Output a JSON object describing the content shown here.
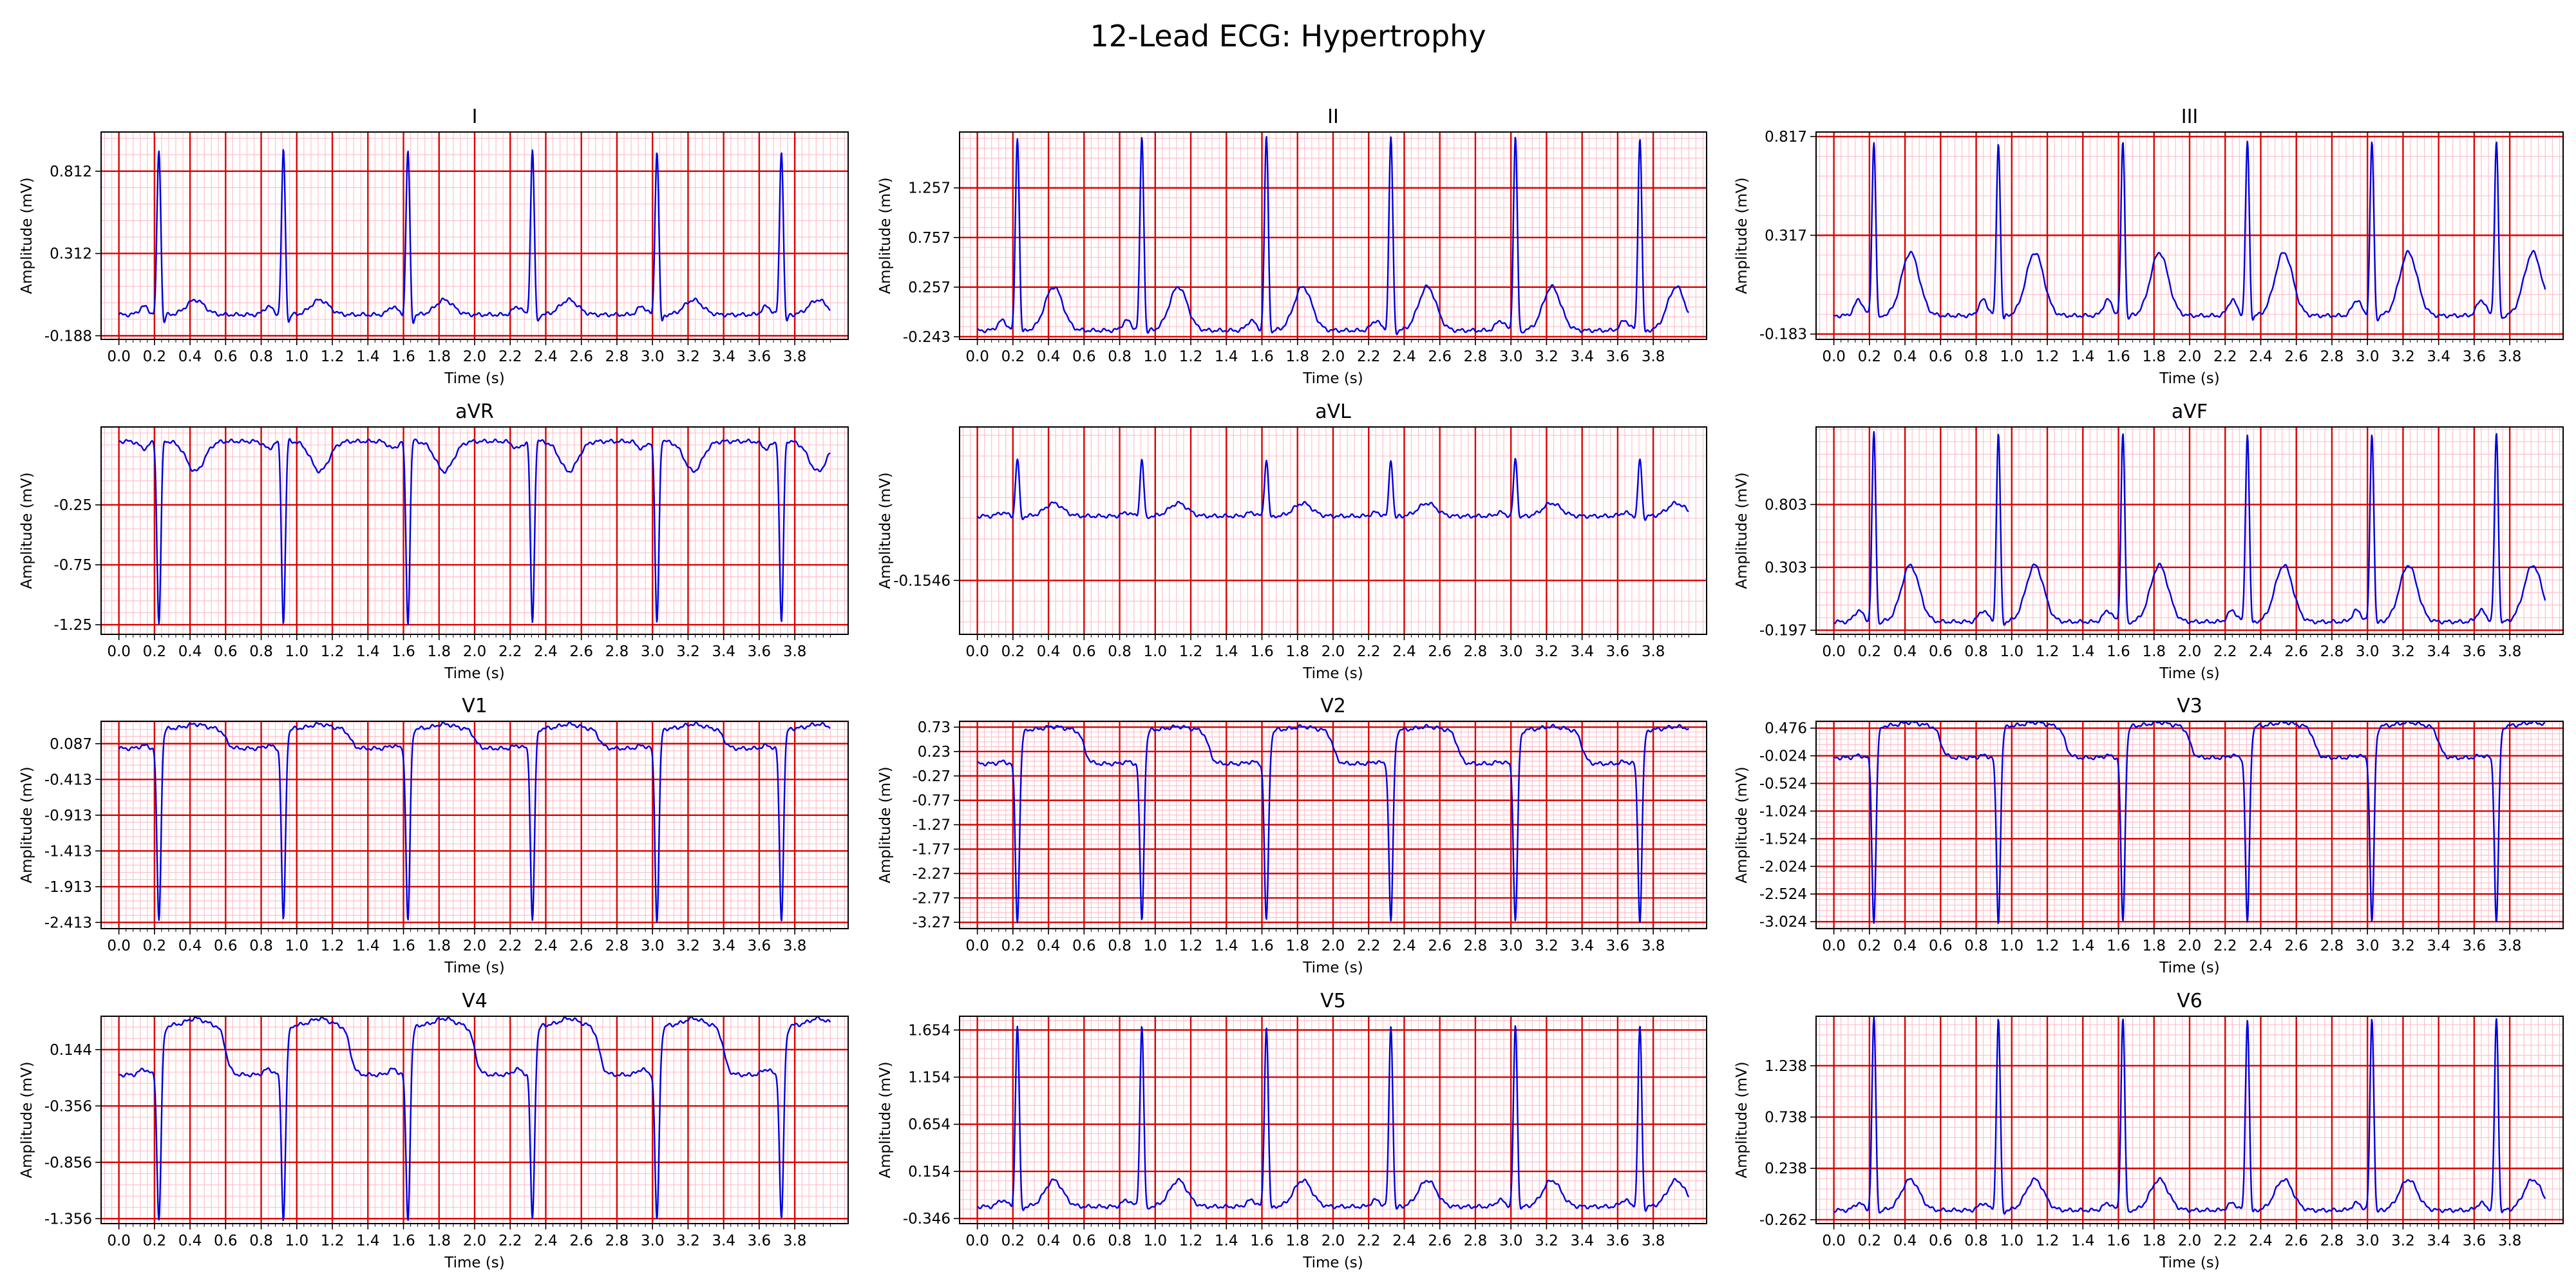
{
  "chart_data": {
    "type": "line",
    "title": "12-Lead ECG: Hypertrophy",
    "layout": {
      "rows": 4,
      "cols": 3
    },
    "xlabel": "Time (s)",
    "ylabel": "Amplitude (mV)",
    "xlim": [
      -0.1,
      4.1
    ],
    "x_ticks": [
      "0.0",
      "0.2",
      "0.4",
      "0.6",
      "0.8",
      "1.0",
      "1.2",
      "1.4",
      "1.6",
      "1.8",
      "2.0",
      "2.2",
      "2.4",
      "2.6",
      "2.8",
      "3.0",
      "3.2",
      "3.4",
      "3.6",
      "3.8"
    ],
    "grid": {
      "major_color": "#e00000",
      "minor_color": "#ffc0cb"
    },
    "line_color": "#0000dd",
    "rr_interval_s": 0.7,
    "beat_onsets_s": [
      0.0,
      0.7,
      1.4,
      2.1,
      2.8,
      3.5
    ],
    "duration_s": 4.0,
    "leads": [
      {
        "name": "I",
        "ylim": [
          -0.21,
          1.05
        ],
        "y_ticks": [
          "-0.188",
          "0.312",
          "0.812"
        ],
        "baseline": -0.06,
        "p": 0.05,
        "q": -0.04,
        "r": 1.0,
        "s": -0.09,
        "st": 0.0,
        "t": 0.09
      },
      {
        "name": "II",
        "ylim": [
          -0.27,
          1.82
        ],
        "y_ticks": [
          "-0.243",
          "0.257",
          "0.757",
          "1.257"
        ],
        "baseline": -0.18,
        "p": 0.1,
        "q": -0.05,
        "r": 1.95,
        "s": -0.08,
        "st": 0.0,
        "t": 0.44
      },
      {
        "name": "III",
        "ylim": [
          -0.21,
          0.84
        ],
        "y_ticks": [
          "-0.183",
          "0.317",
          "0.817"
        ],
        "baseline": -0.09,
        "p": 0.08,
        "q": -0.03,
        "r": 0.88,
        "s": -0.05,
        "st": 0.0,
        "t": 0.32
      },
      {
        "name": "aVR",
        "ylim": [
          -1.33,
          0.4
        ],
        "y_ticks": [
          "-1.25",
          "-0.75",
          "-0.25"
        ],
        "baseline": 0.28,
        "p": -0.06,
        "q": 0.05,
        "r": -1.52,
        "s": 0.04,
        "st": 0.0,
        "t": -0.25
      },
      {
        "name": "aVL",
        "ylim": [
          -0.165,
          -0.125
        ],
        "y_ticks": [
          "-0.1546"
        ],
        "baseline": -0.1422,
        "p": 0.0007,
        "q": -0.0006,
        "r": 0.011,
        "s": -0.0009,
        "st": 0.0,
        "t": 0.0025
      },
      {
        "name": "aVF",
        "ylim": [
          -0.23,
          1.42
        ],
        "y_ticks": [
          "-0.197",
          "0.303",
          "0.803"
        ],
        "baseline": -0.13,
        "p": 0.09,
        "q": -0.04,
        "r": 1.5,
        "s": -0.06,
        "st": 0.0,
        "t": 0.45
      },
      {
        "name": "V1",
        "ylim": [
          -2.5,
          0.4
        ],
        "y_ticks": [
          "-2.413",
          "-1.913",
          "-1.413",
          "-0.913",
          "-0.413",
          "0.087"
        ],
        "baseline": 0.02,
        "p": 0.04,
        "q": 0.05,
        "r": -2.42,
        "s": 0.05,
        "st": 0.28,
        "t": 0.06
      },
      {
        "name": "V2",
        "ylim": [
          -3.4,
          0.85
        ],
        "y_ticks": [
          "-3.27",
          "-2.77",
          "-2.27",
          "-1.77",
          "-1.27",
          "-0.77",
          "-0.27",
          "0.23",
          "0.73"
        ],
        "baseline": -0.02,
        "p": 0.04,
        "q": 0.05,
        "r": -3.25,
        "s": 0.05,
        "st": 0.7,
        "t": 0.06
      },
      {
        "name": "V3",
        "ylim": [
          -3.15,
          0.6
        ],
        "y_ticks": [
          "-3.024",
          "-2.524",
          "-2.024",
          "-1.524",
          "-1.024",
          "-0.524",
          "-0.024",
          "0.476"
        ],
        "baseline": -0.06,
        "p": 0.04,
        "q": 0.05,
        "r": -3.0,
        "s": 0.06,
        "st": 0.58,
        "t": 0.06
      },
      {
        "name": "V4",
        "ylim": [
          -1.4,
          0.44
        ],
        "y_ticks": [
          "-1.356",
          "-0.856",
          "-0.356",
          "0.144"
        ],
        "baseline": -0.08,
        "p": 0.05,
        "q": 0.04,
        "r": -1.3,
        "s": 0.06,
        "st": 0.44,
        "t": 0.06
      },
      {
        "name": "V5",
        "ylim": [
          -0.4,
          1.8
        ],
        "y_ticks": [
          "-0.346",
          "0.154",
          "0.654",
          "1.154",
          "1.654"
        ],
        "baseline": -0.22,
        "p": 0.07,
        "q": -0.05,
        "r": 1.92,
        "s": -0.09,
        "st": 0.0,
        "t": 0.28
      },
      {
        "name": "V6",
        "ylim": [
          -0.3,
          1.72
        ],
        "y_ticks": [
          "-0.262",
          "0.238",
          "0.738",
          "1.238"
        ],
        "baseline": -0.17,
        "p": 0.07,
        "q": -0.04,
        "r": 1.87,
        "s": -0.08,
        "st": 0.0,
        "t": 0.3
      }
    ]
  }
}
